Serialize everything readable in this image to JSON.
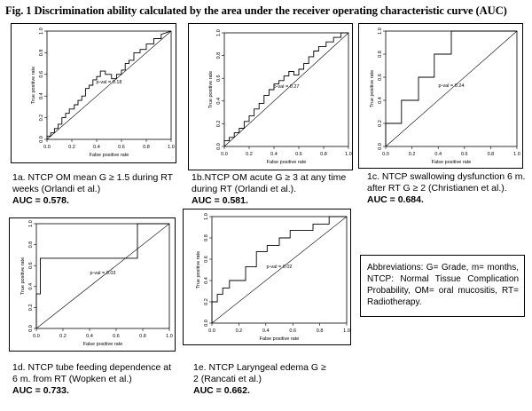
{
  "figure_title": "Fig. 1 Discrimination ability calculated by the area under the receiver operating characteristic curve (AUC)",
  "abbreviations": "Abbreviations: G= Grade, m= months, NTCP: Normal Tissue Complication Probability, OM= oral mucositis, RT= Radiotherapy.",
  "chart_data": [
    {
      "id": "1a",
      "type": "line",
      "xlabel": "False positive rate",
      "ylabel": "True positive rate",
      "xlim": [
        0,
        1
      ],
      "ylim": [
        0,
        1
      ],
      "x_ticks": [
        "0.0",
        "0.2",
        "0.4",
        "0.6",
        "0.8",
        "1.0"
      ],
      "y_ticks": [
        "0.0",
        "0.2",
        "0.4",
        "0.6",
        "0.8",
        "1.0"
      ],
      "annotation": "p-val = 0.18",
      "caption": "1a. NTCP OM mean G ≥ 1.5 during RT weeks (Orlandi et al.)",
      "auc": "AUC = 0.578.",
      "x": [
        0.0,
        0.0,
        0.03,
        0.03,
        0.06,
        0.06,
        0.09,
        0.09,
        0.12,
        0.12,
        0.15,
        0.15,
        0.18,
        0.18,
        0.22,
        0.22,
        0.25,
        0.25,
        0.28,
        0.28,
        0.31,
        0.31,
        0.34,
        0.34,
        0.37,
        0.37,
        0.4,
        0.4,
        0.43,
        0.43,
        0.47,
        0.47,
        0.52,
        0.52,
        0.56,
        0.56,
        0.6,
        0.6,
        0.63,
        0.63,
        0.66,
        0.66,
        0.7,
        0.7,
        0.75,
        0.75,
        0.8,
        0.8,
        0.86,
        0.86,
        0.92,
        0.92,
        1.0
      ],
      "y": [
        0.0,
        0.03,
        0.03,
        0.06,
        0.06,
        0.1,
        0.1,
        0.14,
        0.14,
        0.2,
        0.2,
        0.24,
        0.24,
        0.28,
        0.28,
        0.32,
        0.32,
        0.36,
        0.36,
        0.4,
        0.4,
        0.47,
        0.47,
        0.5,
        0.5,
        0.55,
        0.55,
        0.58,
        0.58,
        0.63,
        0.63,
        0.6,
        0.6,
        0.56,
        0.56,
        0.6,
        0.6,
        0.64,
        0.64,
        0.7,
        0.7,
        0.73,
        0.73,
        0.8,
        0.8,
        0.83,
        0.83,
        0.88,
        0.88,
        0.93,
        0.93,
        0.97,
        1.0
      ]
    },
    {
      "id": "1b",
      "type": "line",
      "xlabel": "False positive rate",
      "ylabel": "True positive rate",
      "xlim": [
        0,
        1
      ],
      "ylim": [
        0,
        1
      ],
      "x_ticks": [
        "0.0",
        "0.2",
        "0.4",
        "0.6",
        "0.8",
        "1.0"
      ],
      "y_ticks": [
        "0.0",
        "0.2",
        "0.4",
        "0.6",
        "0.8",
        "1.0"
      ],
      "annotation": "p-val = 0.27",
      "caption": "1b.NTCP OM acute G ≥ 3 at any time during RT (Orlandi et al.).",
      "auc": "AUC = 0.581.",
      "x": [
        0.0,
        0.0,
        0.04,
        0.04,
        0.08,
        0.08,
        0.12,
        0.12,
        0.16,
        0.16,
        0.2,
        0.2,
        0.24,
        0.24,
        0.28,
        0.28,
        0.32,
        0.32,
        0.36,
        0.36,
        0.4,
        0.4,
        0.44,
        0.44,
        0.48,
        0.48,
        0.52,
        0.52,
        0.56,
        0.56,
        0.6,
        0.6,
        0.64,
        0.64,
        0.68,
        0.68,
        0.72,
        0.72,
        0.76,
        0.76,
        0.82,
        0.82,
        0.88,
        0.88,
        0.94,
        0.94,
        1.0
      ],
      "y": [
        0.0,
        0.05,
        0.05,
        0.08,
        0.08,
        0.12,
        0.12,
        0.16,
        0.16,
        0.22,
        0.22,
        0.27,
        0.27,
        0.33,
        0.33,
        0.38,
        0.38,
        0.45,
        0.45,
        0.5,
        0.5,
        0.55,
        0.55,
        0.58,
        0.58,
        0.62,
        0.62,
        0.66,
        0.66,
        0.63,
        0.63,
        0.68,
        0.68,
        0.73,
        0.73,
        0.79,
        0.79,
        0.84,
        0.84,
        0.88,
        0.88,
        0.92,
        0.92,
        0.96,
        0.96,
        1.0,
        1.0
      ]
    },
    {
      "id": "1c",
      "type": "line",
      "xlabel": "False positive rate",
      "ylabel": "True positive rate",
      "xlim": [
        0,
        1
      ],
      "ylim": [
        0,
        1
      ],
      "x_ticks": [
        "0.0",
        "0.2",
        "0.4",
        "0.6",
        "0.8",
        "1.0"
      ],
      "y_ticks": [
        "0.0",
        "0.2",
        "0.4",
        "0.6",
        "0.8",
        "1.0"
      ],
      "annotation": "p-val = 0.24",
      "caption": "1c. NTCP swallowing dysfunction 6 m. after RT G ≥ 2 (Christianen et al.).",
      "auc": "AUC = 0.684.",
      "x": [
        0.0,
        0.0,
        0.12,
        0.12,
        0.25,
        0.25,
        0.37,
        0.37,
        0.5,
        0.5,
        0.62,
        0.62,
        1.0
      ],
      "y": [
        0.0,
        0.2,
        0.2,
        0.4,
        0.4,
        0.6,
        0.6,
        0.8,
        0.8,
        1.0,
        1.0,
        1.0,
        1.0
      ]
    },
    {
      "id": "1d",
      "type": "line",
      "xlabel": "False positive rate",
      "ylabel": "True positive rate",
      "xlim": [
        0,
        1
      ],
      "ylim": [
        0,
        1
      ],
      "x_ticks": [
        "0.0",
        "0.2",
        "0.4",
        "0.6",
        "0.8",
        "1.0"
      ],
      "y_ticks": [
        "0.0",
        "0.2",
        "0.4",
        "0.6",
        "0.8",
        "1.0"
      ],
      "annotation": "p-val = 0.03",
      "caption": "1d. NTCP tube feeding dependence at 6 m. from RT (Wopken et al.)",
      "auc": "AUC = 0.733.",
      "x": [
        0.0,
        0.0,
        0.03,
        0.03,
        0.76,
        0.76,
        1.0
      ],
      "y": [
        0.0,
        0.33,
        0.33,
        0.67,
        0.67,
        1.0,
        1.0
      ]
    },
    {
      "id": "1e",
      "type": "line",
      "xlabel": "False positive rate",
      "ylabel": "True positive rate",
      "xlim": [
        0,
        1
      ],
      "ylim": [
        0,
        1
      ],
      "x_ticks": [
        "0.0",
        "0.2",
        "0.4",
        "0.6",
        "0.8",
        "1.0"
      ],
      "y_ticks": [
        "0.0",
        "0.2",
        "0.4",
        "0.6",
        "0.8",
        "1.0"
      ],
      "annotation": "p-val = 0.02",
      "caption": "1e. NTCP Laryngeal edema G ≥ 2 (Rancati et al.)",
      "auc": "AUC = 0.662.",
      "x": [
        0.0,
        0.0,
        0.04,
        0.04,
        0.08,
        0.08,
        0.13,
        0.13,
        0.25,
        0.25,
        0.33,
        0.33,
        0.41,
        0.41,
        0.5,
        0.5,
        0.58,
        0.58,
        0.66,
        0.66,
        0.75,
        0.75,
        0.87,
        0.87,
        1.0
      ],
      "y": [
        0.0,
        0.2,
        0.2,
        0.27,
        0.27,
        0.33,
        0.33,
        0.4,
        0.4,
        0.53,
        0.53,
        0.67,
        0.67,
        0.73,
        0.73,
        0.8,
        0.8,
        0.87,
        0.87,
        0.87,
        0.87,
        0.93,
        0.93,
        1.0,
        1.0
      ]
    }
  ]
}
